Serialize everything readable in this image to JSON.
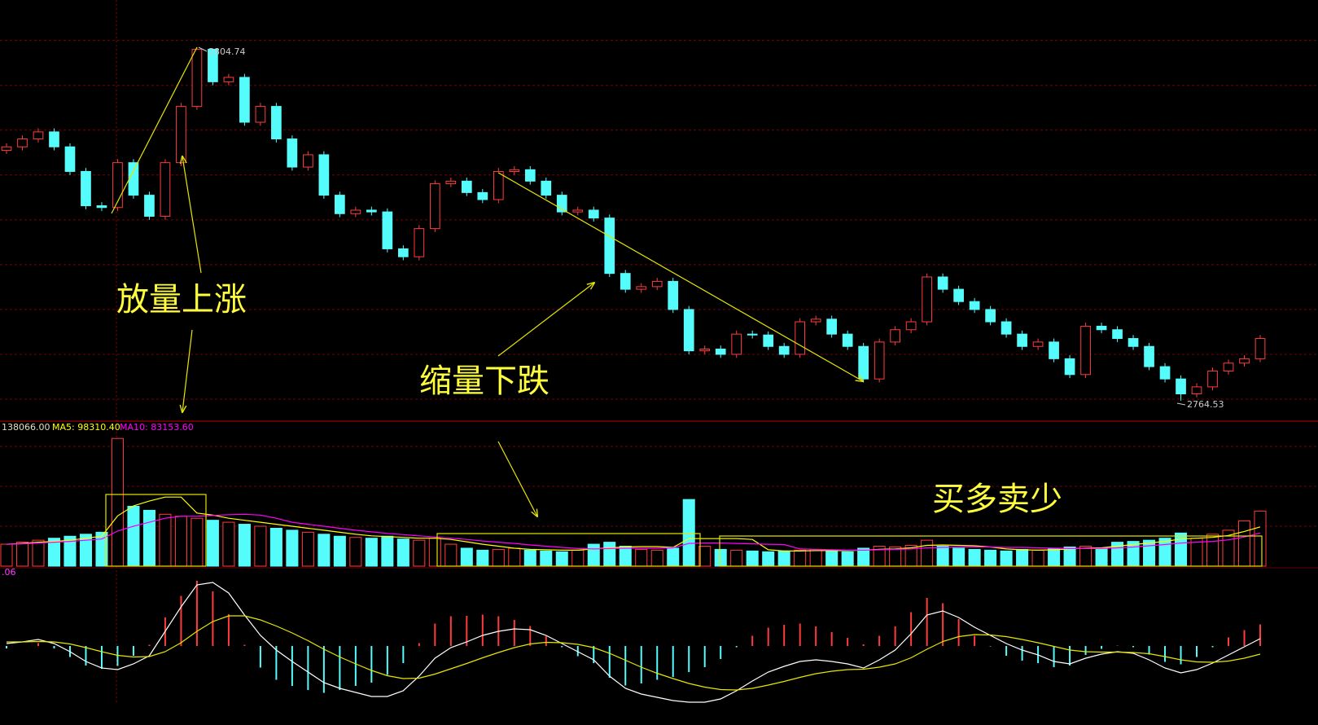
{
  "chart_data": [
    {
      "type": "candlestick",
      "open": [
        2793,
        2793.4,
        2794.3,
        2795.1,
        2793.4,
        2790.6,
        2786.7,
        2786.5,
        2791.6,
        2787.9,
        2785.5,
        2791.6,
        2798.0,
        2804.5,
        2800.8,
        2801.3,
        2796.2,
        2798.0,
        2794.3,
        2791.1,
        2792.5,
        2787.9,
        2785.8,
        2786.2,
        2786.0,
        2781.8,
        2780.9,
        2784.1,
        2789.2,
        2789.5,
        2788.2,
        2787.4,
        2790.6,
        2790.8,
        2789.5,
        2787.9,
        2786.0,
        2786.2,
        2785.3,
        2779.0,
        2777.2,
        2777.5,
        2778.1,
        2774.9,
        2770.2,
        2770.4,
        2769.8,
        2772.1,
        2772.0,
        2770.7,
        2769.8,
        2773.5,
        2773.8,
        2772.1,
        2770.7,
        2767.0,
        2771.2,
        2772.6,
        2773.5,
        2778.6,
        2777.2,
        2775.8,
        2774.9,
        2773.5,
        2772.1,
        2770.7,
        2771.2,
        2769.3,
        2767.5,
        2773.0,
        2772.6,
        2771.6,
        2770.7,
        2768.4,
        2767.0,
        2765.3,
        2766.1,
        2767.9,
        2768.8,
        2769.3
      ],
      "high": [
        2793.8,
        2794.7,
        2795.5,
        2795.5,
        2793.8,
        2791.0,
        2787.1,
        2792.0,
        2792.0,
        2788.3,
        2792.0,
        2798.4,
        2804.74,
        2804.6,
        2801.7,
        2801.7,
        2798.4,
        2798.4,
        2794.7,
        2792.9,
        2792.9,
        2788.3,
        2786.6,
        2786.6,
        2786.4,
        2782.2,
        2784.5,
        2789.6,
        2789.9,
        2789.9,
        2788.6,
        2791.0,
        2791.2,
        2791.2,
        2789.9,
        2788.3,
        2786.6,
        2786.6,
        2785.7,
        2779.4,
        2777.9,
        2778.5,
        2778.5,
        2775.3,
        2770.8,
        2770.8,
        2772.5,
        2772.5,
        2772.4,
        2771.1,
        2773.9,
        2774.2,
        2774.2,
        2772.5,
        2771.1,
        2771.6,
        2773.0,
        2773.9,
        2779.0,
        2779.0,
        2777.6,
        2776.2,
        2775.3,
        2773.9,
        2772.5,
        2771.6,
        2771.6,
        2769.7,
        2773.4,
        2773.4,
        2773.0,
        2772.0,
        2771.1,
        2768.8,
        2767.4,
        2766.5,
        2768.3,
        2769.2,
        2769.7,
        2772.0
      ],
      "low": [
        2792.6,
        2793.0,
        2793.9,
        2793.0,
        2790.2,
        2786.3,
        2786.1,
        2786.1,
        2787.5,
        2785.1,
        2785.1,
        2791.2,
        2797.6,
        2800.4,
        2800.4,
        2795.8,
        2795.8,
        2793.9,
        2790.7,
        2790.7,
        2787.5,
        2785.4,
        2785.4,
        2785.6,
        2781.4,
        2780.5,
        2780.5,
        2783.7,
        2788.8,
        2787.8,
        2787.0,
        2787.0,
        2790.2,
        2789.1,
        2787.5,
        2785.6,
        2785.6,
        2784.9,
        2778.6,
        2776.8,
        2776.8,
        2777.1,
        2774.5,
        2769.8,
        2769.8,
        2769.4,
        2769.4,
        2771.6,
        2770.3,
        2769.4,
        2769.4,
        2773.1,
        2771.7,
        2770.3,
        2766.6,
        2766.6,
        2770.8,
        2772.2,
        2773.1,
        2776.8,
        2775.4,
        2774.5,
        2773.1,
        2771.7,
        2770.3,
        2770.3,
        2768.9,
        2767.1,
        2767.1,
        2772.2,
        2771.2,
        2770.3,
        2768.0,
        2766.6,
        2764.53,
        2764.9,
        2765.7,
        2767.5,
        2768.4,
        2768.9
      ],
      "close": [
        2793.4,
        2794.3,
        2795.1,
        2793.4,
        2790.6,
        2786.7,
        2786.5,
        2791.6,
        2787.9,
        2785.5,
        2791.6,
        2798.0,
        2804.5,
        2800.8,
        2801.3,
        2796.2,
        2798.0,
        2794.3,
        2791.1,
        2792.5,
        2787.9,
        2785.8,
        2786.2,
        2786.0,
        2781.8,
        2780.9,
        2784.1,
        2789.2,
        2789.5,
        2788.2,
        2787.4,
        2790.6,
        2790.8,
        2789.5,
        2787.9,
        2786.0,
        2786.2,
        2785.3,
        2779.0,
        2777.2,
        2777.5,
        2778.1,
        2774.9,
        2770.2,
        2770.4,
        2769.8,
        2772.1,
        2772.0,
        2770.7,
        2769.8,
        2773.5,
        2773.8,
        2772.1,
        2770.7,
        2767.0,
        2771.2,
        2772.6,
        2773.5,
        2778.6,
        2777.2,
        2775.8,
        2774.9,
        2773.5,
        2772.1,
        2770.7,
        2771.2,
        2769.3,
        2767.5,
        2773.0,
        2772.6,
        2771.6,
        2770.7,
        2768.4,
        2767.0,
        2765.3,
        2766.1,
        2767.9,
        2768.8,
        2769.3,
        2771.6
      ],
      "up_color": "#ff3c3c",
      "down_color": "#54fcfc",
      "ylim": [
        2762.2,
        2810.1
      ],
      "ygrid": [
        2805.5,
        2800.4,
        2795.3,
        2790.2,
        2785.1,
        2780.0,
        2774.9,
        2769.8,
        2764.7
      ],
      "grid": true,
      "annotations": [
        "放量上涨",
        "缩量下跌"
      ]
    },
    {
      "type": "volume",
      "values": [
        55000,
        60000,
        65000,
        70000,
        75000,
        80000,
        85000,
        320000,
        150000,
        140000,
        130000,
        125000,
        120000,
        115000,
        110000,
        105000,
        100000,
        95000,
        90000,
        85000,
        80000,
        75000,
        72000,
        70000,
        75000,
        68000,
        65000,
        70000,
        55000,
        45000,
        40000,
        42000,
        45000,
        40000,
        38000,
        36000,
        40000,
        55000,
        60000,
        50000,
        42000,
        40000,
        45000,
        167000,
        50000,
        42000,
        40000,
        38000,
        36000,
        38000,
        40000,
        42000,
        38000,
        36000,
        45000,
        50000,
        48000,
        52000,
        65000,
        50000,
        45000,
        42000,
        40000,
        38000,
        42000,
        40000,
        45000,
        48000,
        50000,
        45000,
        60000,
        62000,
        65000,
        70000,
        82984,
        70000,
        80000,
        90000,
        113486,
        138066
      ],
      "current_label": "138066.00",
      "series": [
        {
          "name": "MA5: 98310.40",
          "color": "#ffff00",
          "values": [
            55000,
            57000,
            60000,
            62000,
            65000,
            70000,
            75000,
            126000,
            151000,
            163000,
            173000,
            173000,
            133000,
            128000,
            120000,
            115000,
            110000,
            105000,
            100000,
            95000,
            90000,
            85000,
            80000,
            76000,
            74000,
            72000,
            70000,
            70000,
            67000,
            61000,
            55000,
            50000,
            45000,
            42000,
            41000,
            40000,
            40000,
            43000,
            46000,
            48000,
            49000,
            49000,
            47000,
            69000,
            69000,
            69000,
            69000,
            67000,
            41000,
            38000,
            38000,
            39000,
            39000,
            39000,
            40000,
            42000,
            43000,
            46000,
            52000,
            53000,
            52000,
            51000,
            48000,
            43000,
            41000,
            40000,
            41000,
            43000,
            45000,
            46000,
            50000,
            54000,
            58000,
            62000,
            68000,
            70000,
            72000,
            77000,
            87000,
            98310.4
          ]
        },
        {
          "name": "MA10: 83153.60",
          "color": "#ff00ff",
          "values": [
            55000,
            56000,
            58000,
            60000,
            62000,
            65000,
            68000,
            88000,
            100000,
            110000,
            120000,
            125000,
            125000,
            127000,
            129000,
            130000,
            128000,
            120000,
            110000,
            105000,
            100000,
            95000,
            90000,
            86000,
            82000,
            79000,
            76000,
            73000,
            70000,
            67000,
            63000,
            60000,
            57000,
            53000,
            50000,
            47000,
            44000,
            43000,
            44000,
            45000,
            45000,
            45000,
            46000,
            57000,
            58000,
            58000,
            57000,
            56000,
            55000,
            54000,
            43000,
            42000,
            41000,
            40000,
            40000,
            41000,
            42000,
            43000,
            46000,
            47000,
            48000,
            48000,
            48000,
            47000,
            47000,
            46000,
            45000,
            44000,
            44000,
            44000,
            46000,
            48000,
            51000,
            54000,
            58000,
            60000,
            62000,
            66000,
            73000,
            83153.6
          ]
        }
      ],
      "ylim": [
        0,
        363300
      ],
      "ygrid": [
        100000,
        200000,
        300000
      ],
      "grid": true,
      "annotations": [
        "买多卖少"
      ]
    },
    {
      "type": "macd",
      "header": ".06",
      "values": [
        -0.06,
        0.0,
        0.07,
        -0.06,
        -0.27,
        -0.48,
        -0.56,
        -0.49,
        -0.24,
        0.03,
        0.7,
        1.23,
        1.6,
        1.34,
        0.78,
        0.03,
        -0.53,
        -0.83,
        -0.98,
        -1.08,
        -1.15,
        -1.08,
        -0.98,
        -0.9,
        -0.71,
        -0.42,
        0.07,
        0.55,
        0.73,
        0.74,
        0.77,
        0.73,
        0.64,
        0.49,
        0.24,
        -0.03,
        -0.25,
        -0.42,
        -0.78,
        -0.97,
        -0.92,
        -0.83,
        -0.76,
        -0.64,
        -0.52,
        -0.32,
        -0.03,
        0.25,
        0.45,
        0.52,
        0.55,
        0.48,
        0.34,
        0.2,
        0.04,
        0.25,
        0.48,
        0.83,
        1.18,
        1.05,
        0.66,
        0.25,
        -0.01,
        -0.24,
        -0.36,
        -0.42,
        -0.52,
        -0.48,
        -0.22,
        -0.07,
        0.01,
        -0.03,
        -0.21,
        -0.39,
        -0.45,
        -0.27,
        -0.03,
        0.21,
        0.39,
        0.53
      ],
      "series": [
        {
          "color": "#ffffff",
          "values": [
            0.06,
            0.1,
            0.16,
            0.06,
            -0.14,
            -0.38,
            -0.54,
            -0.58,
            -0.44,
            -0.24,
            0.36,
            0.96,
            1.5,
            1.56,
            1.3,
            0.76,
            0.26,
            -0.1,
            -0.38,
            -0.64,
            -0.9,
            -1.04,
            -1.14,
            -1.24,
            -1.24,
            -1.1,
            -0.74,
            -0.3,
            -0.04,
            0.1,
            0.26,
            0.36,
            0.42,
            0.4,
            0.26,
            0.06,
            -0.14,
            -0.34,
            -0.74,
            -1.04,
            -1.18,
            -1.26,
            -1.34,
            -1.38,
            -1.38,
            -1.3,
            -1.1,
            -0.86,
            -0.64,
            -0.5,
            -0.38,
            -0.34,
            -0.38,
            -0.44,
            -0.54,
            -0.34,
            -0.1,
            0.3,
            0.76,
            0.86,
            0.7,
            0.46,
            0.26,
            0.06,
            -0.1,
            -0.22,
            -0.38,
            -0.44,
            -0.3,
            -0.2,
            -0.14,
            -0.18,
            -0.34,
            -0.54,
            -0.66,
            -0.58,
            -0.42,
            -0.22,
            -0.02,
            0.18
          ]
        },
        {
          "color": "#e6e600",
          "values": [
            0.1,
            0.1,
            0.11,
            0.1,
            0.05,
            -0.04,
            -0.14,
            -0.23,
            -0.27,
            -0.26,
            -0.14,
            0.08,
            0.36,
            0.6,
            0.74,
            0.74,
            0.64,
            0.49,
            0.32,
            0.13,
            -0.08,
            -0.27,
            -0.44,
            -0.6,
            -0.73,
            -0.8,
            -0.79,
            -0.69,
            -0.56,
            -0.43,
            -0.29,
            -0.16,
            -0.04,
            0.05,
            0.09,
            0.08,
            0.04,
            -0.04,
            -0.18,
            -0.35,
            -0.52,
            -0.67,
            -0.8,
            -0.92,
            -1.01,
            -1.07,
            -1.08,
            -1.04,
            -0.96,
            -0.87,
            -0.77,
            -0.68,
            -0.62,
            -0.58,
            -0.57,
            -0.52,
            -0.44,
            -0.29,
            -0.08,
            0.11,
            0.23,
            0.28,
            0.27,
            0.23,
            0.16,
            0.08,
            -0.01,
            -0.1,
            -0.14,
            -0.15,
            -0.15,
            -0.16,
            -0.19,
            -0.26,
            -0.34,
            -0.39,
            -0.4,
            -0.37,
            -0.3,
            -0.2
          ]
        }
      ],
      "ylim": [
        -1.38,
        1.96
      ]
    }
  ]
}
